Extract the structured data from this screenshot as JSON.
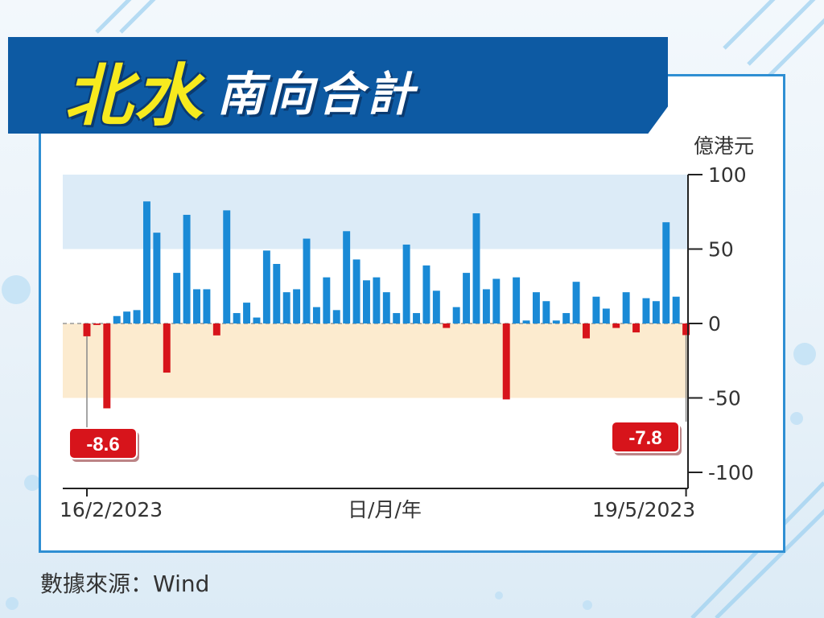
{
  "title": {
    "highlight": "北水",
    "main": "南向合計"
  },
  "source": "數據來源：Wind",
  "colors": {
    "positive": "#1a8ad6",
    "negative": "#d7141b",
    "banner": "#0d5aa3",
    "title_highlight": "#f7ea1e"
  },
  "chart_data": {
    "type": "bar",
    "ylabel": "億港元",
    "xlabel": "日/月/年",
    "ylim": [
      -100,
      100
    ],
    "yticks": [
      "100",
      "50",
      "0",
      "-50",
      "-100"
    ],
    "ytick_values": [
      100,
      50,
      0,
      -50,
      -100
    ],
    "x_start_label": "16/2/2023",
    "x_end_label": "19/5/2023",
    "grid": false,
    "bands": [
      {
        "from": 50,
        "to": 100,
        "color": "#dcebf7"
      },
      {
        "from": -50,
        "to": 0,
        "color": "#fcebcf"
      }
    ],
    "annotations": [
      {
        "text": "-8.6",
        "index": 0,
        "value": -8.6
      },
      {
        "text": "-7.8",
        "index": 60,
        "value": -7.8
      }
    ],
    "values": [
      -8.6,
      -1,
      -57,
      5,
      8,
      9,
      82,
      61,
      -33,
      34,
      73,
      23,
      23,
      -8,
      76,
      7,
      14,
      4,
      49,
      40,
      21,
      23,
      57,
      11,
      31,
      9,
      62,
      43,
      29,
      31,
      21,
      7,
      53,
      7,
      39,
      22,
      -3,
      11,
      34,
      74,
      23,
      30,
      -51,
      31,
      2,
      21,
      15,
      2,
      7,
      28,
      -10,
      18,
      10,
      -3,
      21,
      -6,
      17,
      15,
      68,
      18,
      -7.8
    ]
  }
}
